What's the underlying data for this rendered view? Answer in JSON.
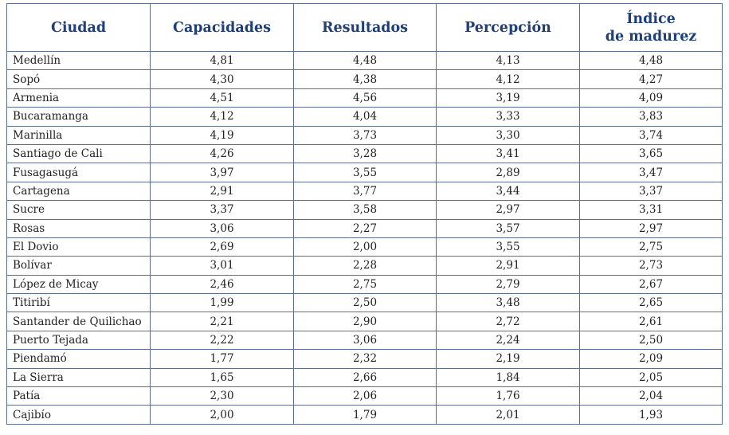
{
  "table": {
    "headers": [
      "Ciudad",
      "Capacidades",
      "Resultados",
      "Percepción",
      "Índice de madurez"
    ],
    "header_last_lines": [
      "Índice",
      "de madurez"
    ],
    "rows": [
      [
        "Medellín",
        "4,81",
        "4,48",
        "4,13",
        "4,48"
      ],
      [
        "Sopó",
        "4,30",
        "4,38",
        "4,12",
        "4,27"
      ],
      [
        "Armenia",
        "4,51",
        "4,56",
        "3,19",
        "4,09"
      ],
      [
        "Bucaramanga",
        "4,12",
        "4,04",
        "3,33",
        "3,83"
      ],
      [
        "Marinilla",
        "4,19",
        "3,73",
        "3,30",
        "3,74"
      ],
      [
        "Santiago de Cali",
        "4,26",
        "3,28",
        "3,41",
        "3,65"
      ],
      [
        "Fusagasugá",
        "3,97",
        "3,55",
        "2,89",
        "3,47"
      ],
      [
        "Cartagena",
        "2,91",
        "3,77",
        "3,44",
        "3,37"
      ],
      [
        "Sucre",
        "3,37",
        "3,58",
        "2,97",
        "3,31"
      ],
      [
        "Rosas",
        "3,06",
        "2,27",
        "3,57",
        "2,97"
      ],
      [
        "El Dovio",
        "2,69",
        "2,00",
        "3,55",
        "2,75"
      ],
      [
        "Bolívar",
        "3,01",
        "2,28",
        "2,91",
        "2,73"
      ],
      [
        "López de Micay",
        "2,46",
        "2,75",
        "2,79",
        "2,67"
      ],
      [
        "Titiribí",
        "1,99",
        "2,50",
        "3,48",
        "2,65"
      ],
      [
        "Santander de Quilichao",
        "2,21",
        "2,90",
        "2,72",
        "2,61"
      ],
      [
        "Puerto Tejada",
        "2,22",
        "3,06",
        "2,24",
        "2,50"
      ],
      [
        "Piendamó",
        "1,77",
        "2,32",
        "2,19",
        "2,09"
      ],
      [
        "La Sierra",
        "1,65",
        "2,66",
        "1,84",
        "2,05"
      ],
      [
        "Patía",
        "2,30",
        "2,06",
        "1,76",
        "2,04"
      ],
      [
        "Cajibío",
        "2,00",
        "1,79",
        "2,01",
        "1,93"
      ]
    ]
  },
  "colors": {
    "header_text": "#1f3f7a",
    "border": "#5a6e92"
  }
}
